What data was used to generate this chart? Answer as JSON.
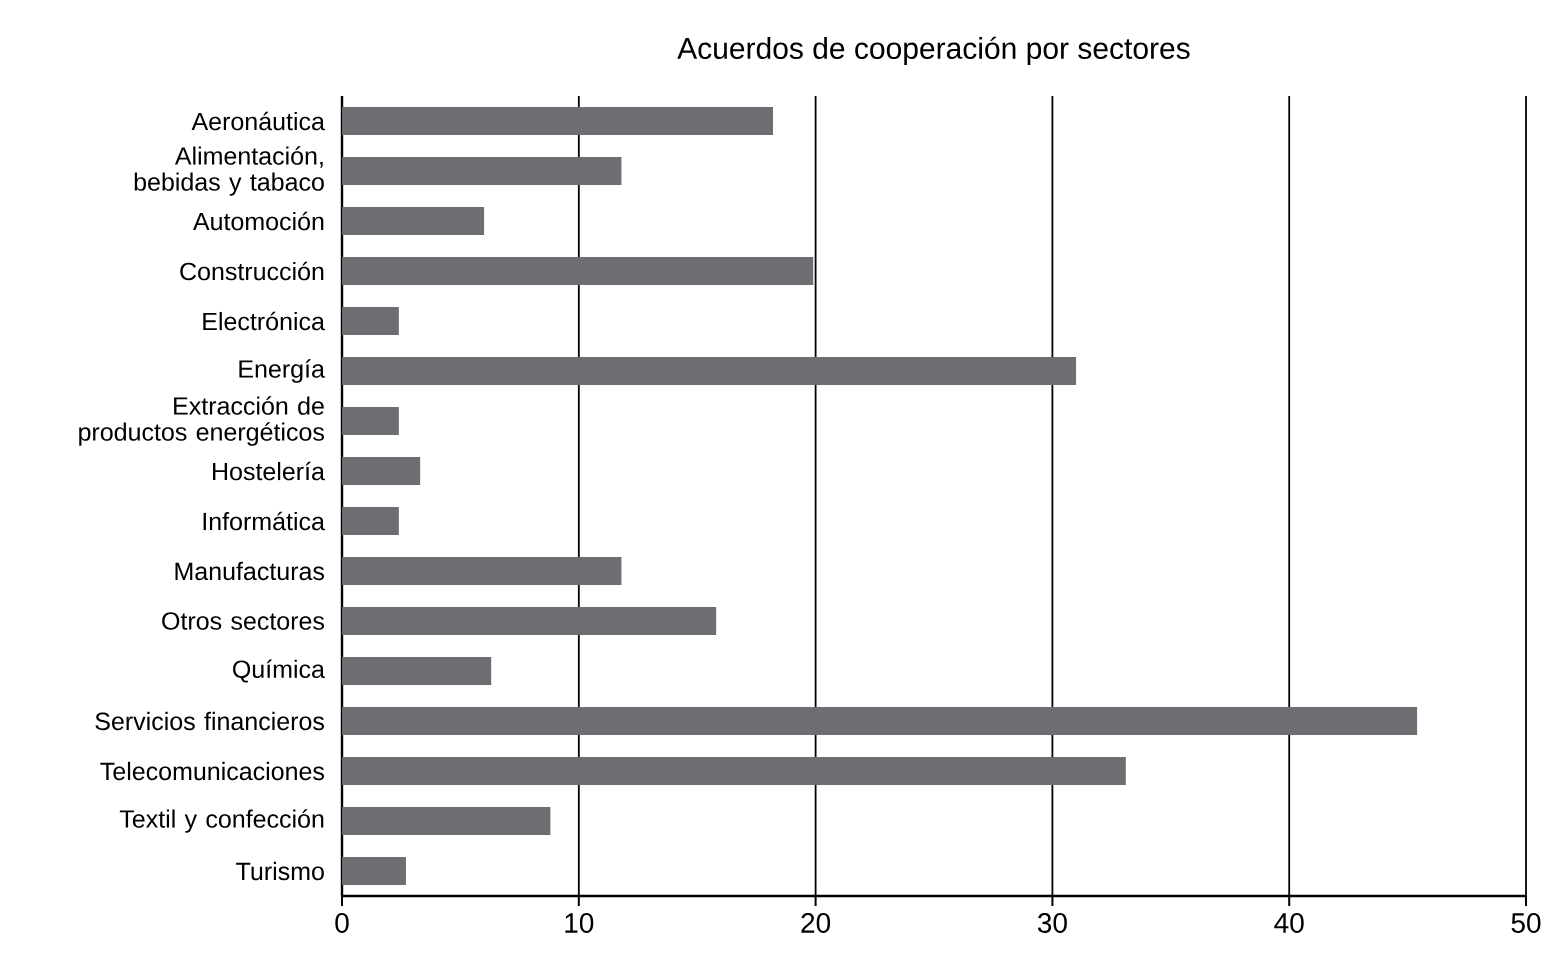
{
  "chart_data": {
    "type": "bar",
    "orientation": "horizontal",
    "title": "Acuerdos de cooperación por sectores",
    "categories": [
      "Aeronáutica",
      "Alimentación, bebidas y tabaco",
      "Automoción",
      "Construcción",
      "Electrónica",
      "Energía",
      "Extracción de productos energéticos",
      "Hostelería",
      "Informática",
      "Manufacturas",
      "Otros sectores",
      "Química",
      "Servicios financieros",
      "Telecomunicaciones",
      "Textil y confección",
      "Turismo"
    ],
    "values": [
      18.2,
      11.8,
      6.0,
      19.9,
      2.4,
      31.0,
      2.4,
      3.3,
      2.4,
      11.8,
      15.8,
      6.3,
      45.4,
      33.1,
      8.8,
      2.7
    ],
    "color": "#6d6e72",
    "xlim": [
      0,
      50
    ],
    "xticks": [
      0,
      10,
      20,
      30,
      40,
      50
    ],
    "grid": "x"
  }
}
